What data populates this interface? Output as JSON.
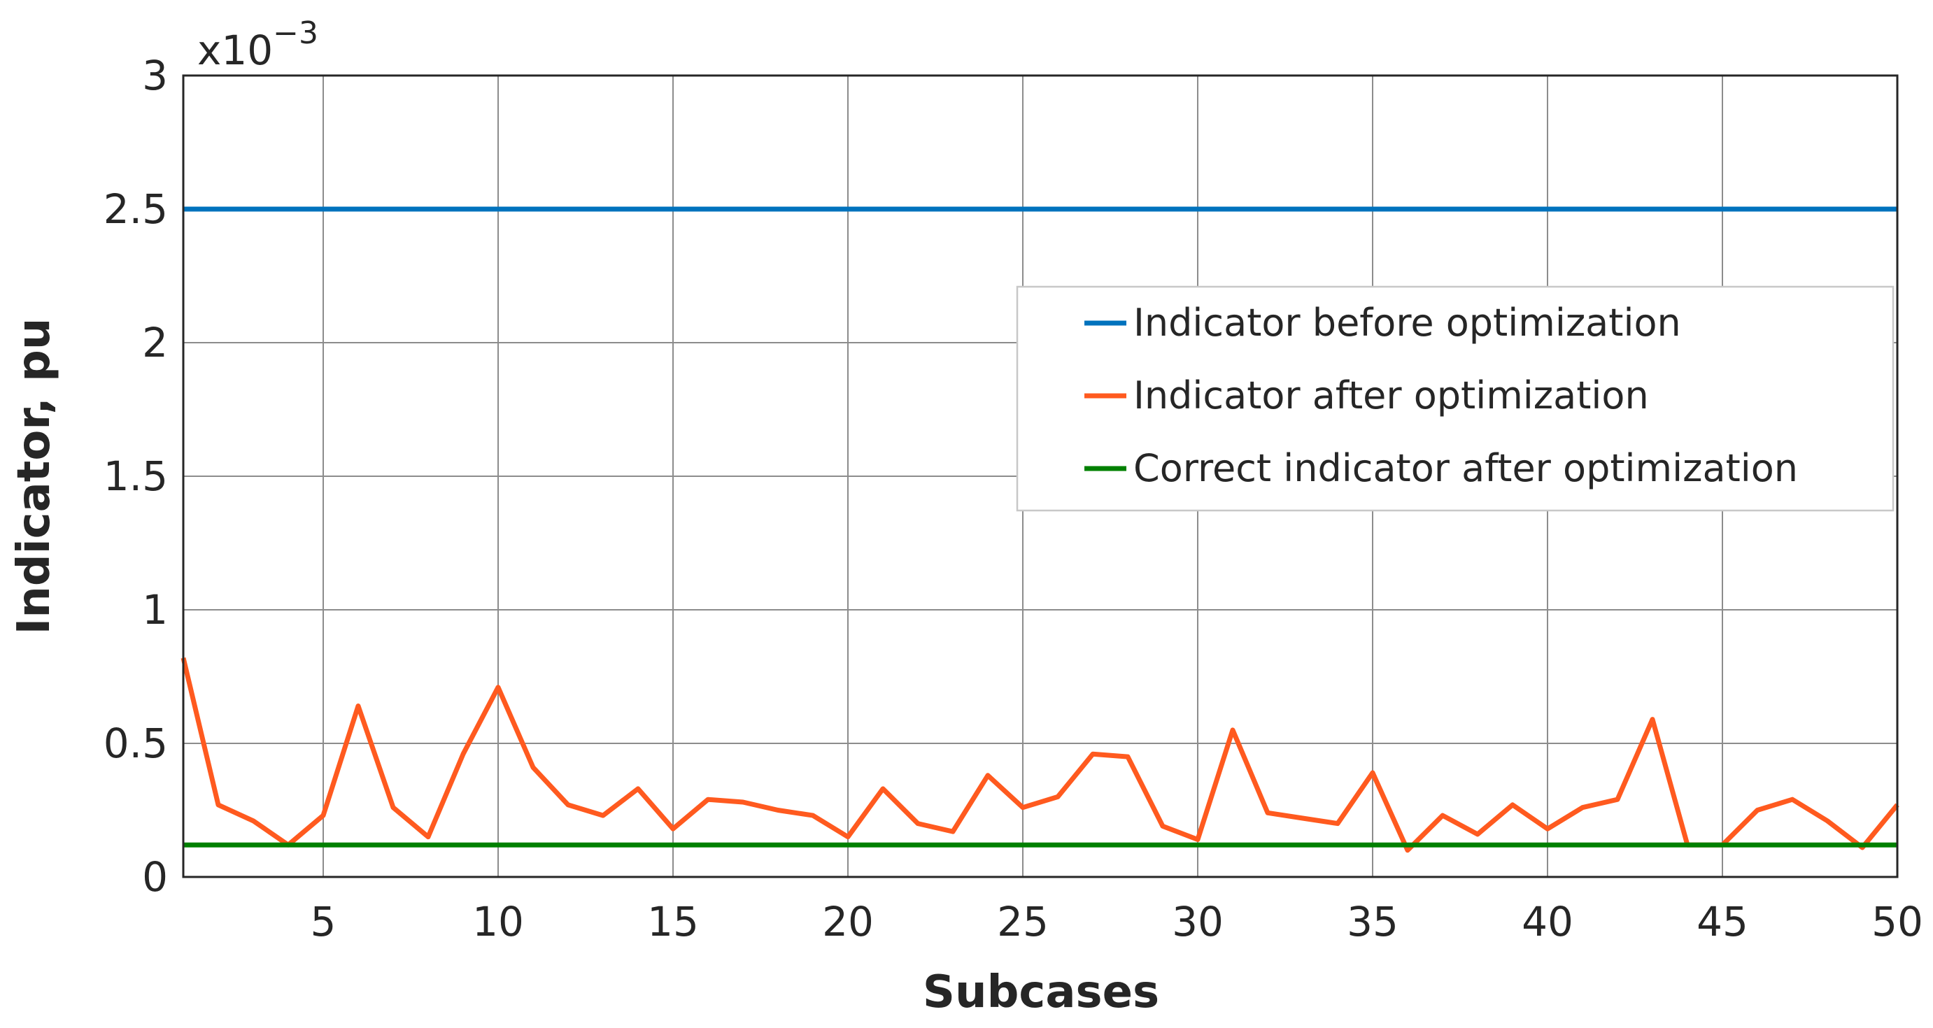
{
  "chart_data": {
    "type": "line",
    "title": "",
    "xlabel": "Subcases",
    "ylabel": "Indicator, pu",
    "y_multiplier": {
      "base": "x10",
      "exponent": "−3"
    },
    "xlim": [
      1,
      50
    ],
    "ylim": [
      0,
      3
    ],
    "y_scale_factor": 0.001,
    "grid": true,
    "legend_position": "right",
    "x_ticks": [
      5,
      10,
      15,
      20,
      25,
      30,
      35,
      40,
      45,
      50
    ],
    "x_tick_labels": [
      "5",
      "10",
      "15",
      "20",
      "25",
      "30",
      "35",
      "40",
      "45",
      "50"
    ],
    "y_ticks": [
      0,
      0.5,
      1,
      1.5,
      2,
      2.5,
      3
    ],
    "y_tick_labels": [
      "0",
      "0.5",
      "1",
      "1.5",
      "2",
      "2.5",
      "3"
    ],
    "x": [
      1,
      2,
      3,
      4,
      5,
      6,
      7,
      8,
      9,
      10,
      11,
      12,
      13,
      14,
      15,
      16,
      17,
      18,
      19,
      20,
      21,
      22,
      23,
      24,
      25,
      26,
      27,
      28,
      29,
      30,
      31,
      32,
      33,
      34,
      35,
      36,
      37,
      38,
      39,
      40,
      41,
      42,
      43,
      44,
      45,
      46,
      47,
      48,
      49,
      50
    ],
    "series": [
      {
        "name": "Indicator before optimization",
        "color": "#0072BD",
        "values": [
          2.5,
          2.5,
          2.5,
          2.5,
          2.5,
          2.5,
          2.5,
          2.5,
          2.5,
          2.5,
          2.5,
          2.5,
          2.5,
          2.5,
          2.5,
          2.5,
          2.5,
          2.5,
          2.5,
          2.5,
          2.5,
          2.5,
          2.5,
          2.5,
          2.5,
          2.5,
          2.5,
          2.5,
          2.5,
          2.5,
          2.5,
          2.5,
          2.5,
          2.5,
          2.5,
          2.5,
          2.5,
          2.5,
          2.5,
          2.5,
          2.5,
          2.5,
          2.5,
          2.5,
          2.5,
          2.5,
          2.5,
          2.5,
          2.5,
          2.5
        ]
      },
      {
        "name": "Indicator after optimization",
        "color": "#FF5A1F",
        "values": [
          0.82,
          0.27,
          0.21,
          0.12,
          0.23,
          0.64,
          0.26,
          0.15,
          0.46,
          0.71,
          0.41,
          0.27,
          0.23,
          0.33,
          0.18,
          0.29,
          0.28,
          0.25,
          0.23,
          0.15,
          0.33,
          0.2,
          0.17,
          0.38,
          0.26,
          0.3,
          0.46,
          0.45,
          0.19,
          0.14,
          0.55,
          0.24,
          0.22,
          0.2,
          0.39,
          0.1,
          0.23,
          0.16,
          0.27,
          0.18,
          0.26,
          0.29,
          0.59,
          0.12,
          0.12,
          0.25,
          0.29,
          0.21,
          0.11,
          0.27
        ]
      },
      {
        "name": "Correct indicator after optimization",
        "color": "#008000",
        "values": [
          0.12,
          0.12,
          0.12,
          0.12,
          0.12,
          0.12,
          0.12,
          0.12,
          0.12,
          0.12,
          0.12,
          0.12,
          0.12,
          0.12,
          0.12,
          0.12,
          0.12,
          0.12,
          0.12,
          0.12,
          0.12,
          0.12,
          0.12,
          0.12,
          0.12,
          0.12,
          0.12,
          0.12,
          0.12,
          0.12,
          0.12,
          0.12,
          0.12,
          0.12,
          0.12,
          0.12,
          0.12,
          0.12,
          0.12,
          0.12,
          0.12,
          0.12,
          0.12,
          0.12,
          0.12,
          0.12,
          0.12,
          0.12,
          0.12,
          0.12
        ]
      }
    ]
  }
}
